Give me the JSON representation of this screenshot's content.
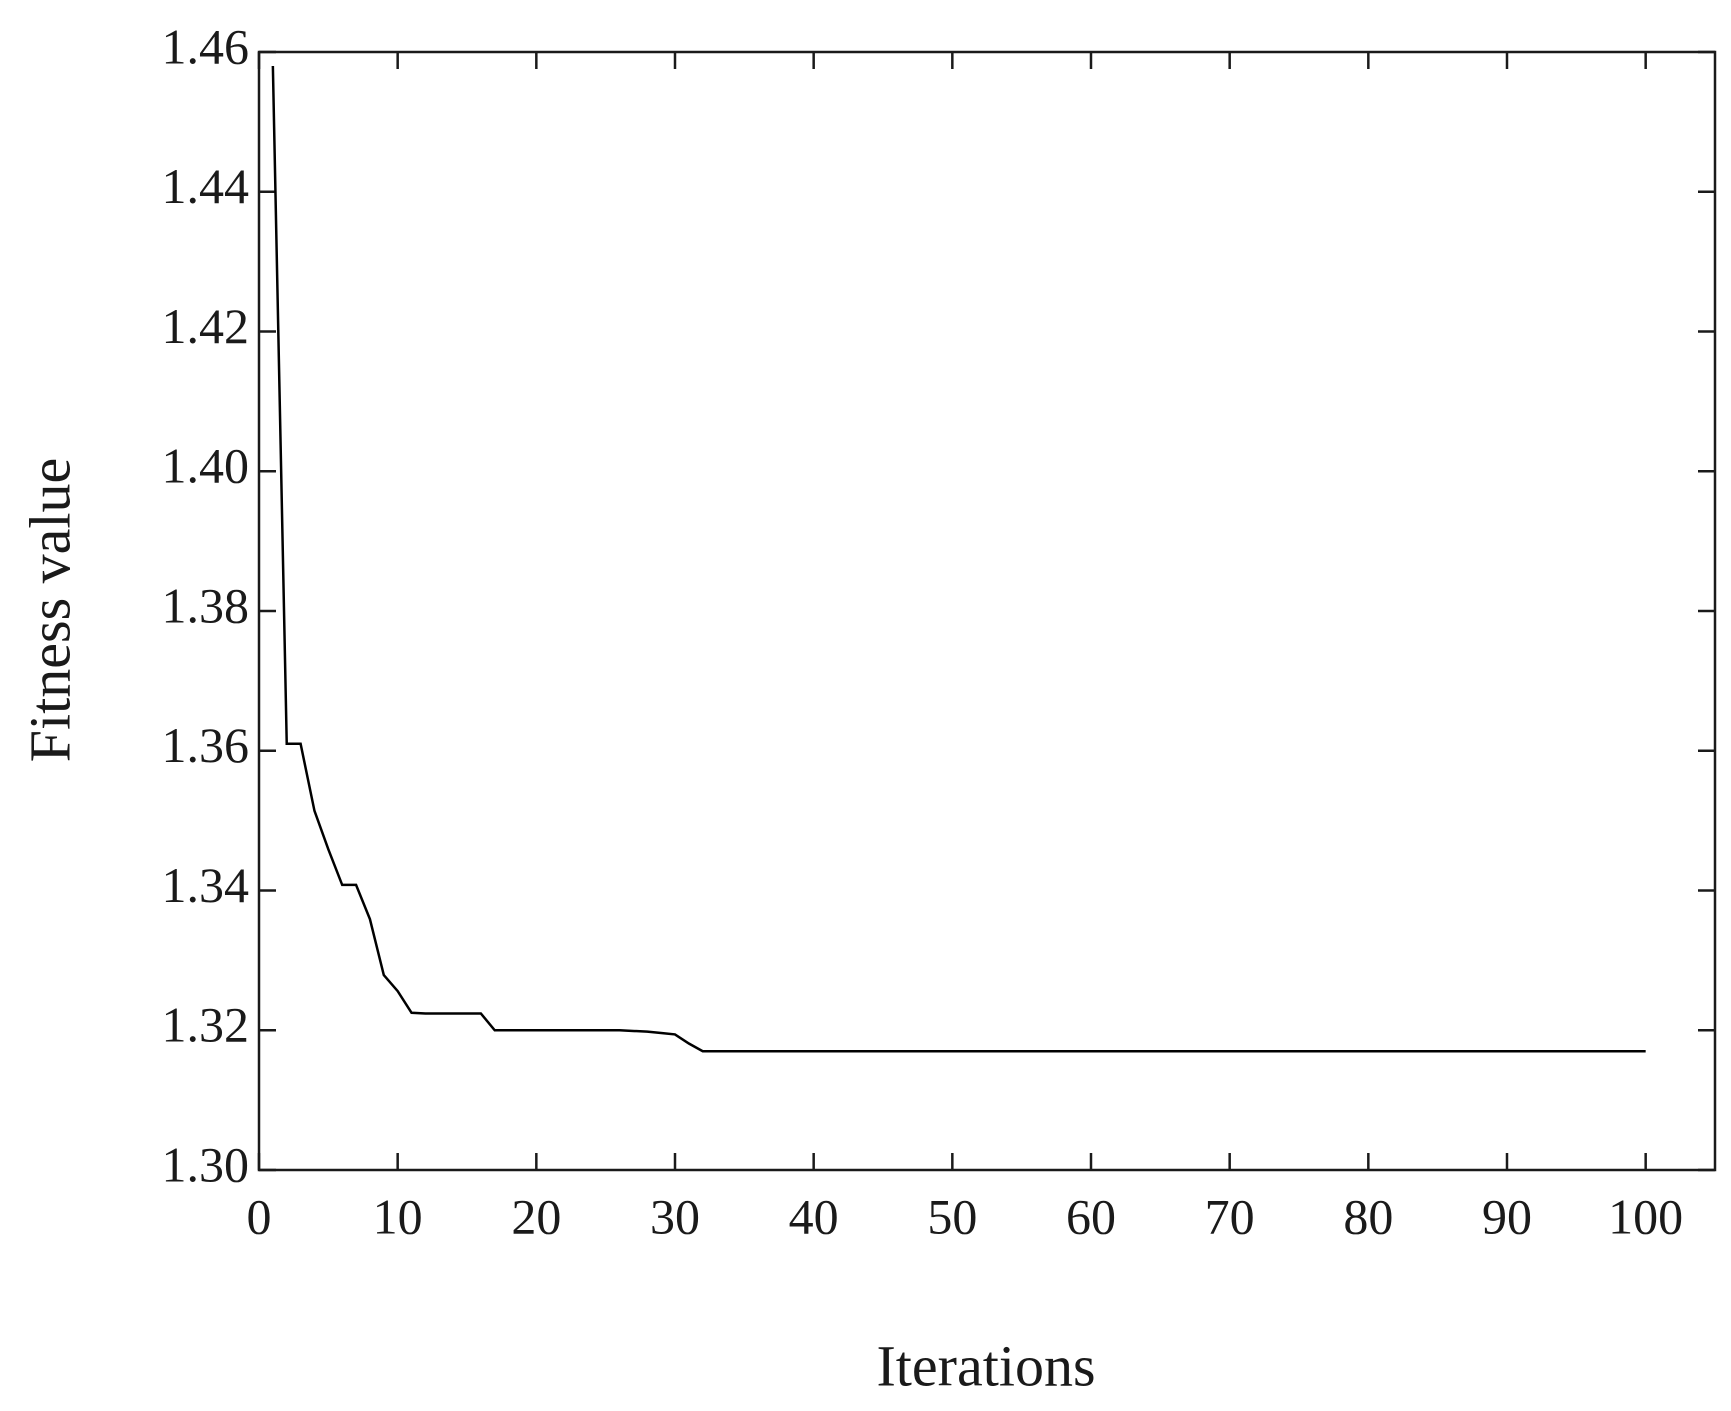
{
  "chart_data": {
    "type": "line",
    "x_label": "Iterations",
    "y_label": "Fitness value",
    "x": [
      1,
      2,
      3,
      4,
      5,
      6,
      7,
      8,
      9,
      10,
      11,
      12,
      13,
      14,
      15,
      16,
      17,
      18,
      19,
      20,
      21,
      22,
      23,
      24,
      25,
      26,
      27,
      28,
      29,
      30,
      31,
      32,
      33,
      34,
      35,
      36,
      37,
      38,
      39,
      40,
      41,
      42,
      43,
      44,
      45,
      46,
      47,
      48,
      49,
      50,
      51,
      52,
      53,
      54,
      55,
      56,
      57,
      58,
      59,
      60,
      61,
      62,
      63,
      64,
      65,
      66,
      67,
      68,
      69,
      70,
      71,
      72,
      73,
      74,
      75,
      76,
      77,
      78,
      79,
      80,
      81,
      82,
      83,
      84,
      85,
      86,
      87,
      88,
      89,
      90,
      91,
      92,
      93,
      94,
      95,
      96,
      97,
      98,
      99,
      100
    ],
    "series": [
      {
        "name": null,
        "color": "#000000",
        "values": [
          1.458,
          1.361,
          1.361,
          1.3514,
          1.3459,
          1.3408,
          1.3408,
          1.3359,
          1.3279,
          1.3256,
          1.3225,
          1.3224,
          1.3224,
          1.3224,
          1.3224,
          1.3224,
          1.32,
          1.32,
          1.32,
          1.32,
          1.32,
          1.32,
          1.32,
          1.32,
          1.32,
          1.32,
          1.3199,
          1.3198,
          1.3196,
          1.3194,
          1.3181,
          1.317,
          1.317,
          1.317,
          1.317,
          1.317,
          1.317,
          1.317,
          1.317,
          1.317,
          1.317,
          1.317,
          1.317,
          1.317,
          1.317,
          1.317,
          1.317,
          1.317,
          1.317,
          1.317,
          1.317,
          1.317,
          1.317,
          1.317,
          1.317,
          1.317,
          1.317,
          1.317,
          1.317,
          1.317,
          1.317,
          1.317,
          1.317,
          1.317,
          1.317,
          1.317,
          1.317,
          1.317,
          1.317,
          1.317,
          1.317,
          1.317,
          1.317,
          1.317,
          1.317,
          1.317,
          1.317,
          1.317,
          1.317,
          1.317,
          1.317,
          1.317,
          1.317,
          1.317,
          1.317,
          1.317,
          1.317,
          1.317,
          1.317,
          1.317,
          1.317,
          1.317,
          1.317,
          1.317,
          1.317,
          1.317,
          1.317,
          1.317,
          1.317,
          1.317
        ]
      }
    ],
    "xlim": [
      0,
      105
    ],
    "xticks": [
      0,
      10,
      20,
      30,
      40,
      50,
      60,
      70,
      80,
      90,
      100
    ],
    "ylim": [
      1.3,
      1.46
    ],
    "yticks": [
      {
        "value": 1.3,
        "label": "1.30"
      },
      1.32,
      1.34,
      1.36,
      1.38,
      {
        "value": 1.4,
        "label": "1.40"
      },
      1.42,
      1.44,
      1.46
    ],
    "grid": false
  }
}
